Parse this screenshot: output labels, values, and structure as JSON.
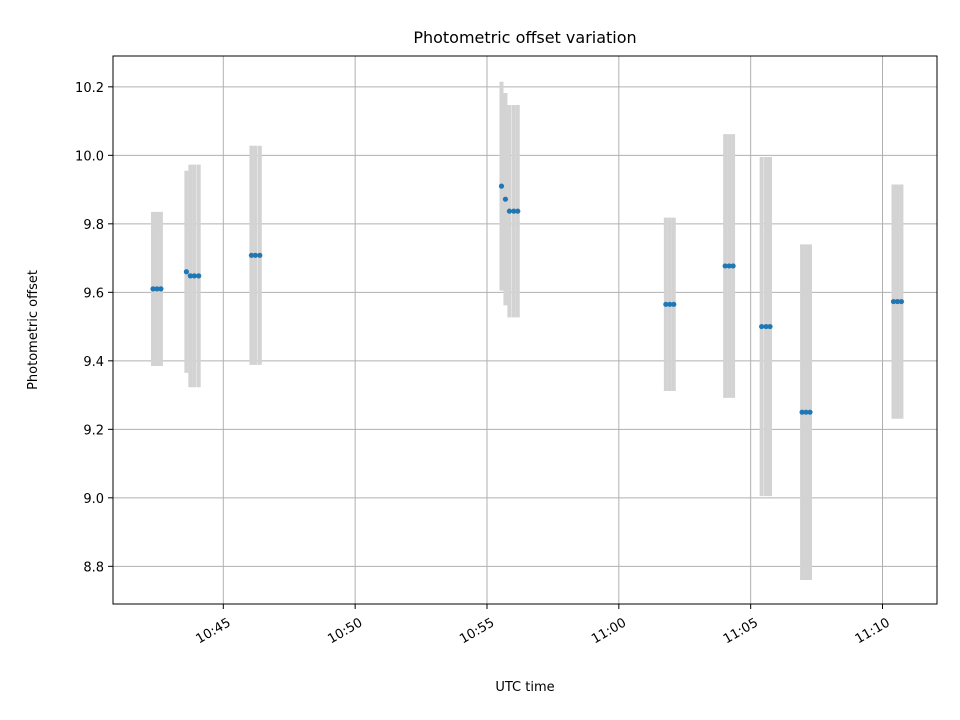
{
  "chart_data": {
    "type": "scatter",
    "title": "Photometric offset variation",
    "xlabel": "UTC time",
    "ylabel": "Photometric offset",
    "xlim": [
      "10:40:49",
      "11:12:04"
    ],
    "ylim": [
      8.69,
      10.29
    ],
    "x_ticks": [
      "10:45",
      "10:50",
      "10:55",
      "11:00",
      "11:05",
      "11:10"
    ],
    "y_ticks": [
      "8.8",
      "9.0",
      "9.2",
      "9.4",
      "9.6",
      "9.8",
      "10.0",
      "10.2"
    ],
    "grid": true,
    "point_color": "#1f77b4",
    "errorbar_color": "#d3d3d3",
    "points": [
      {
        "time": "10:42:20",
        "y": 9.61,
        "err": 0.225
      },
      {
        "time": "10:42:29",
        "y": 9.61,
        "err": 0.225
      },
      {
        "time": "10:42:38",
        "y": 9.61,
        "err": 0.225
      },
      {
        "time": "10:43:36",
        "y": 9.66,
        "err": 0.295
      },
      {
        "time": "10:43:45",
        "y": 9.648,
        "err": 0.325
      },
      {
        "time": "10:43:54",
        "y": 9.648,
        "err": 0.325
      },
      {
        "time": "10:44:04",
        "y": 9.648,
        "err": 0.325
      },
      {
        "time": "10:46:04",
        "y": 9.708,
        "err": 0.32
      },
      {
        "time": "10:46:13",
        "y": 9.708,
        "err": 0.32
      },
      {
        "time": "10:46:23",
        "y": 9.708,
        "err": 0.32
      },
      {
        "time": "10:55:33",
        "y": 9.91,
        "err": 0.305
      },
      {
        "time": "10:55:42",
        "y": 9.872,
        "err": 0.31
      },
      {
        "time": "10:55:51",
        "y": 9.837,
        "err": 0.31
      },
      {
        "time": "10:56:01",
        "y": 9.837,
        "err": 0.31
      },
      {
        "time": "10:56:10",
        "y": 9.837,
        "err": 0.31
      },
      {
        "time": "11:01:47",
        "y": 9.565,
        "err": 0.253
      },
      {
        "time": "11:01:56",
        "y": 9.565,
        "err": 0.253
      },
      {
        "time": "11:02:05",
        "y": 9.565,
        "err": 0.253
      },
      {
        "time": "11:04:02",
        "y": 9.677,
        "err": 0.385
      },
      {
        "time": "11:04:11",
        "y": 9.677,
        "err": 0.385
      },
      {
        "time": "11:04:20",
        "y": 9.677,
        "err": 0.385
      },
      {
        "time": "11:05:25",
        "y": 9.5,
        "err": 0.495
      },
      {
        "time": "11:05:35",
        "y": 9.5,
        "err": 0.495
      },
      {
        "time": "11:05:44",
        "y": 9.5,
        "err": 0.495
      },
      {
        "time": "11:06:57",
        "y": 9.25,
        "err": 0.49
      },
      {
        "time": "11:07:06",
        "y": 9.25,
        "err": 0.49
      },
      {
        "time": "11:07:15",
        "y": 9.25,
        "err": 0.49
      },
      {
        "time": "11:10:25",
        "y": 9.573,
        "err": 0.342
      },
      {
        "time": "11:10:34",
        "y": 9.573,
        "err": 0.342
      },
      {
        "time": "11:10:43",
        "y": 9.573,
        "err": 0.342
      }
    ]
  }
}
